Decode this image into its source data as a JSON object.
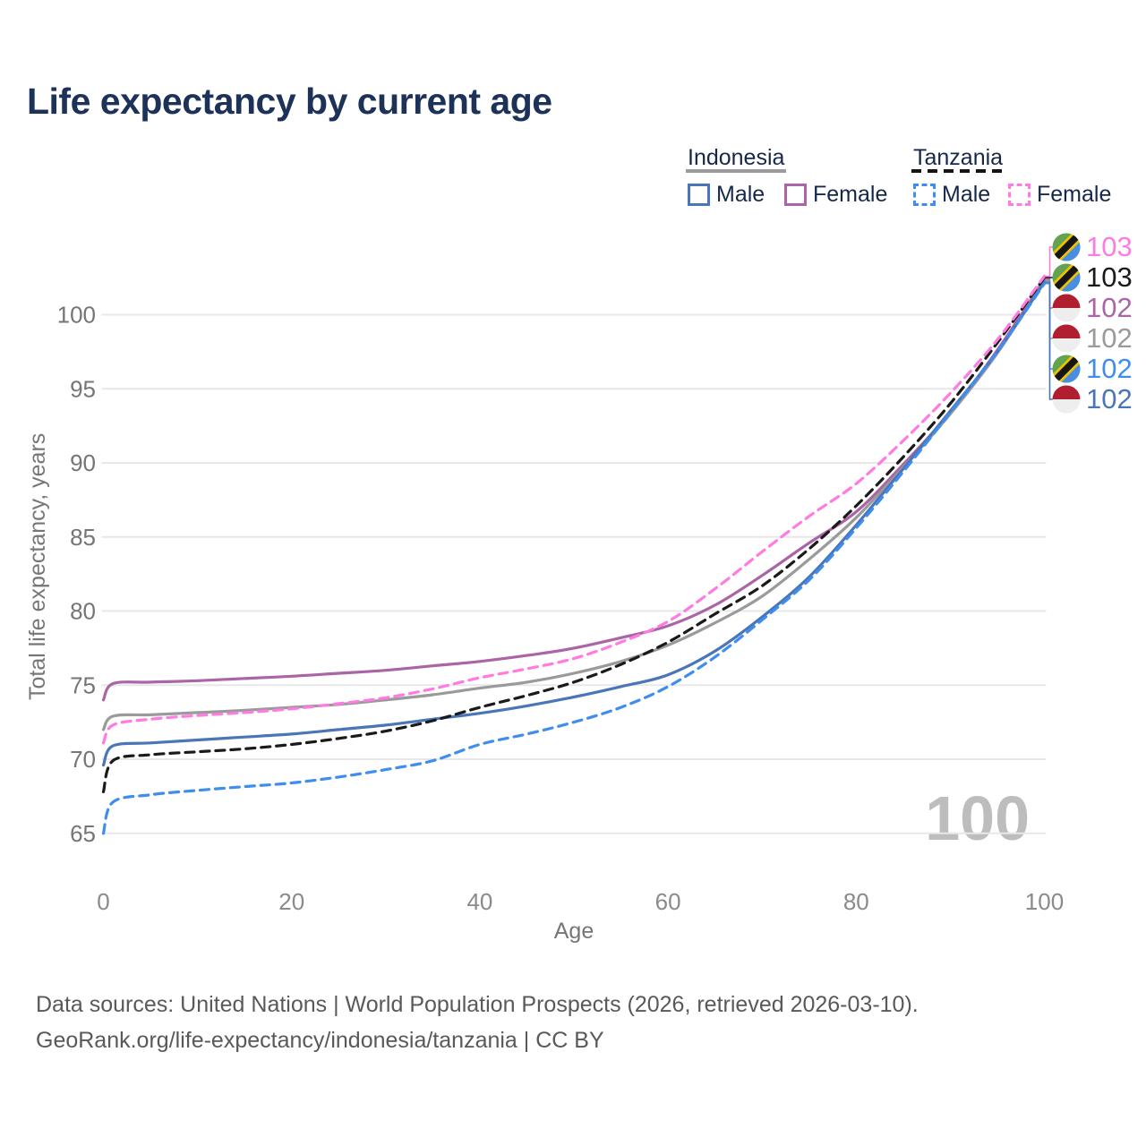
{
  "title": "Life expectancy by current age",
  "legend": {
    "groups": [
      {
        "label": "Indonesia",
        "items": [
          {
            "label": "Male",
            "series": "id_male"
          },
          {
            "label": "Female",
            "series": "id_female"
          }
        ]
      },
      {
        "label": "Tanzania",
        "items": [
          {
            "label": "Male",
            "series": "tz_male"
          },
          {
            "label": "Female",
            "series": "tz_female"
          }
        ]
      }
    ]
  },
  "chart_data": {
    "type": "line",
    "title": "Life expectancy by current age",
    "xlabel": "Age",
    "ylabel": "Total life expectancy, years",
    "xlim": [
      0,
      100
    ],
    "ylim": [
      63.5,
      104
    ],
    "x_ticks": [
      0,
      20,
      40,
      60,
      80,
      100
    ],
    "y_ticks": [
      65,
      70,
      75,
      80,
      85,
      90,
      95,
      100
    ],
    "grid": "horizontal",
    "ages": [
      0,
      1,
      5,
      10,
      15,
      20,
      25,
      30,
      35,
      40,
      45,
      50,
      55,
      60,
      65,
      70,
      75,
      80,
      85,
      90,
      95,
      100
    ],
    "series": [
      {
        "key": "id_female",
        "name": "Indonesia Female",
        "color": "#ab64a5",
        "dash": false,
        "values": [
          74.0,
          75.1,
          75.2,
          75.3,
          75.45,
          75.6,
          75.8,
          76.0,
          76.3,
          76.6,
          77.0,
          77.5,
          78.2,
          79.0,
          80.4,
          82.4,
          84.6,
          86.7,
          89.9,
          93.4,
          97.6,
          102.4
        ]
      },
      {
        "key": "id_total",
        "name": "Indonesia (both sexes)",
        "color": "#9a9a9a",
        "dash": false,
        "values": [
          72.0,
          72.9,
          73.0,
          73.15,
          73.3,
          73.5,
          73.7,
          74.0,
          74.35,
          74.8,
          75.2,
          75.8,
          76.6,
          77.7,
          79.2,
          81.0,
          83.5,
          86.3,
          89.7,
          93.3,
          97.4,
          102.3
        ]
      },
      {
        "key": "id_male",
        "name": "Indonesia Male",
        "color": "#4a76b8",
        "dash": false,
        "values": [
          69.6,
          70.9,
          71.1,
          71.3,
          71.5,
          71.7,
          72.0,
          72.3,
          72.7,
          73.1,
          73.6,
          74.2,
          74.9,
          75.7,
          77.3,
          79.6,
          82.3,
          85.8,
          89.6,
          93.5,
          97.5,
          102.2
        ]
      },
      {
        "key": "tz_total",
        "name": "Tanzania (both sexes)",
        "color": "#1a1a1a",
        "dash": true,
        "values": [
          67.8,
          69.9,
          70.3,
          70.5,
          70.7,
          71.0,
          71.4,
          71.9,
          72.6,
          73.5,
          74.3,
          75.2,
          76.4,
          77.9,
          79.8,
          81.7,
          84.2,
          87.1,
          90.4,
          94.0,
          98.1,
          102.5
        ]
      },
      {
        "key": "tz_female",
        "name": "Tanzania Female",
        "color": "#ff7ae1",
        "dash": true,
        "values": [
          71.1,
          72.3,
          72.7,
          72.95,
          73.15,
          73.4,
          73.75,
          74.15,
          74.75,
          75.5,
          76.1,
          76.8,
          77.9,
          79.3,
          81.5,
          84.0,
          86.4,
          88.6,
          91.5,
          94.7,
          98.3,
          102.6
        ]
      },
      {
        "key": "tz_male",
        "name": "Tanzania Male",
        "color": "#3f8def",
        "dash": true,
        "values": [
          65.0,
          67.1,
          67.6,
          67.9,
          68.15,
          68.4,
          68.8,
          69.3,
          69.9,
          71.0,
          71.7,
          72.5,
          73.5,
          74.9,
          76.9,
          79.4,
          82.1,
          85.6,
          89.4,
          93.4,
          97.5,
          102.1
        ]
      }
    ],
    "end_labels": [
      {
        "value": "103",
        "series": "tz_female",
        "flag": "tanzania",
        "color": "#ff7ae1"
      },
      {
        "value": "103",
        "series": "tz_total",
        "flag": "tanzania",
        "color": "#1a1a1a"
      },
      {
        "value": "102",
        "series": "id_female",
        "flag": "indonesia",
        "color": "#ab64a5"
      },
      {
        "value": "102",
        "series": "id_total",
        "flag": "indonesia",
        "color": "#9a9a9a"
      },
      {
        "value": "102",
        "series": "tz_male",
        "flag": "tanzania",
        "color": "#3f8def"
      },
      {
        "value": "102",
        "series": "id_male",
        "flag": "indonesia",
        "color": "#4a76b8"
      }
    ]
  },
  "watermark": "100",
  "footer": {
    "line1": "Data sources: United Nations | World Population Prospects (2026, retrieved 2026-03-10).",
    "line2": "GeoRank.org/life-expectancy/indonesia/tanzania | CC BY"
  }
}
